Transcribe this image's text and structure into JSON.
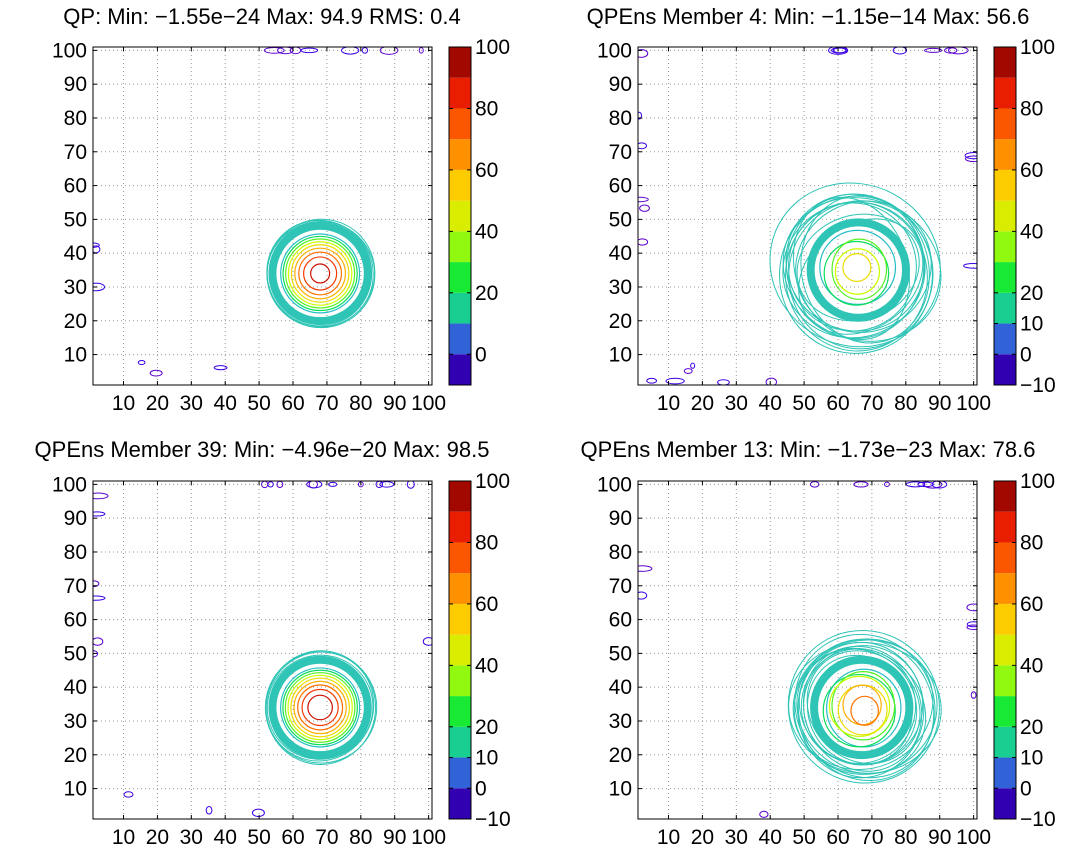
{
  "chart_data": [
    {
      "type": "contour",
      "title": "QP: Min: −1.55e−24 Max: 94.9 RMS: 0.4",
      "xlim": [
        1,
        101
      ],
      "ylim": [
        1,
        101
      ],
      "xticks": [
        "10",
        "20",
        "30",
        "40",
        "50",
        "60",
        "70",
        "80",
        "90",
        "100"
      ],
      "yticks": [
        "10",
        "20",
        "30",
        "40",
        "50",
        "60",
        "70",
        "80",
        "90",
        "100"
      ],
      "grid": true,
      "field": {
        "center": [
          68,
          34
        ],
        "radius": 15,
        "peak": 94.9,
        "min": -1.55e-24,
        "rms": 0.4,
        "noise": "low"
      },
      "colorbar": {
        "ticks": [
          "0",
          "20",
          "40",
          "60",
          "80",
          "100"
        ],
        "range": [
          -10,
          100
        ],
        "colormap": "jet-like (purple-blue-cyan-green-yellow-orange-red-maroon)"
      }
    },
    {
      "type": "contour",
      "title": "QPEns Member 4: Min: −1.15e−14 Max: 56.6",
      "xlim": [
        1,
        101
      ],
      "ylim": [
        1,
        101
      ],
      "xticks": [
        "10",
        "20",
        "30",
        "40",
        "50",
        "60",
        "70",
        "80",
        "90",
        "100"
      ],
      "yticks": [
        "10",
        "20",
        "30",
        "40",
        "50",
        "60",
        "70",
        "80",
        "90",
        "100"
      ],
      "grid": true,
      "field": {
        "center": [
          66,
          35
        ],
        "radius": 15,
        "peak": 56.6,
        "min": -1.15e-14,
        "noise": "high"
      },
      "colorbar": {
        "ticks": [
          "−10",
          "0",
          "10",
          "20",
          "40",
          "60",
          "80",
          "100"
        ],
        "range": [
          -10,
          100
        ],
        "colormap": "jet-like (purple-blue-cyan-green-yellow-orange-red-maroon)"
      }
    },
    {
      "type": "contour",
      "title": "QPEns Member 39: Min: −4.96e−20 Max: 98.5",
      "xlim": [
        1,
        101
      ],
      "ylim": [
        1,
        101
      ],
      "xticks": [
        "10",
        "20",
        "30",
        "40",
        "50",
        "60",
        "70",
        "80",
        "90",
        "100"
      ],
      "yticks": [
        "10",
        "20",
        "30",
        "40",
        "50",
        "60",
        "70",
        "80",
        "90",
        "100"
      ],
      "grid": true,
      "field": {
        "center": [
          68,
          34
        ],
        "radius": 15,
        "peak": 98.5,
        "min": -4.96e-20,
        "noise": "low"
      },
      "colorbar": {
        "ticks": [
          "−10",
          "0",
          "10",
          "20",
          "40",
          "60",
          "80",
          "100"
        ],
        "range": [
          -10,
          100
        ],
        "colormap": "jet-like (purple-blue-cyan-green-yellow-orange-red-maroon)"
      }
    },
    {
      "type": "contour",
      "title": "QPEns Member 13: Min: −1.73e−23 Max: 78.6",
      "xlim": [
        1,
        101
      ],
      "ylim": [
        1,
        101
      ],
      "xticks": [
        "10",
        "20",
        "30",
        "40",
        "50",
        "60",
        "70",
        "80",
        "90",
        "100"
      ],
      "yticks": [
        "10",
        "20",
        "30",
        "40",
        "50",
        "60",
        "70",
        "80",
        "90",
        "100"
      ],
      "grid": true,
      "field": {
        "center": [
          67,
          34
        ],
        "radius": 15,
        "peak": 78.6,
        "min": -1.73e-23,
        "noise": "medium"
      },
      "colorbar": {
        "ticks": [
          "−10",
          "0",
          "10",
          "20",
          "40",
          "60",
          "80",
          "100"
        ],
        "range": [
          -10,
          100
        ],
        "colormap": "jet-like (purple-blue-cyan-green-yellow-orange-red-maroon)"
      }
    }
  ]
}
